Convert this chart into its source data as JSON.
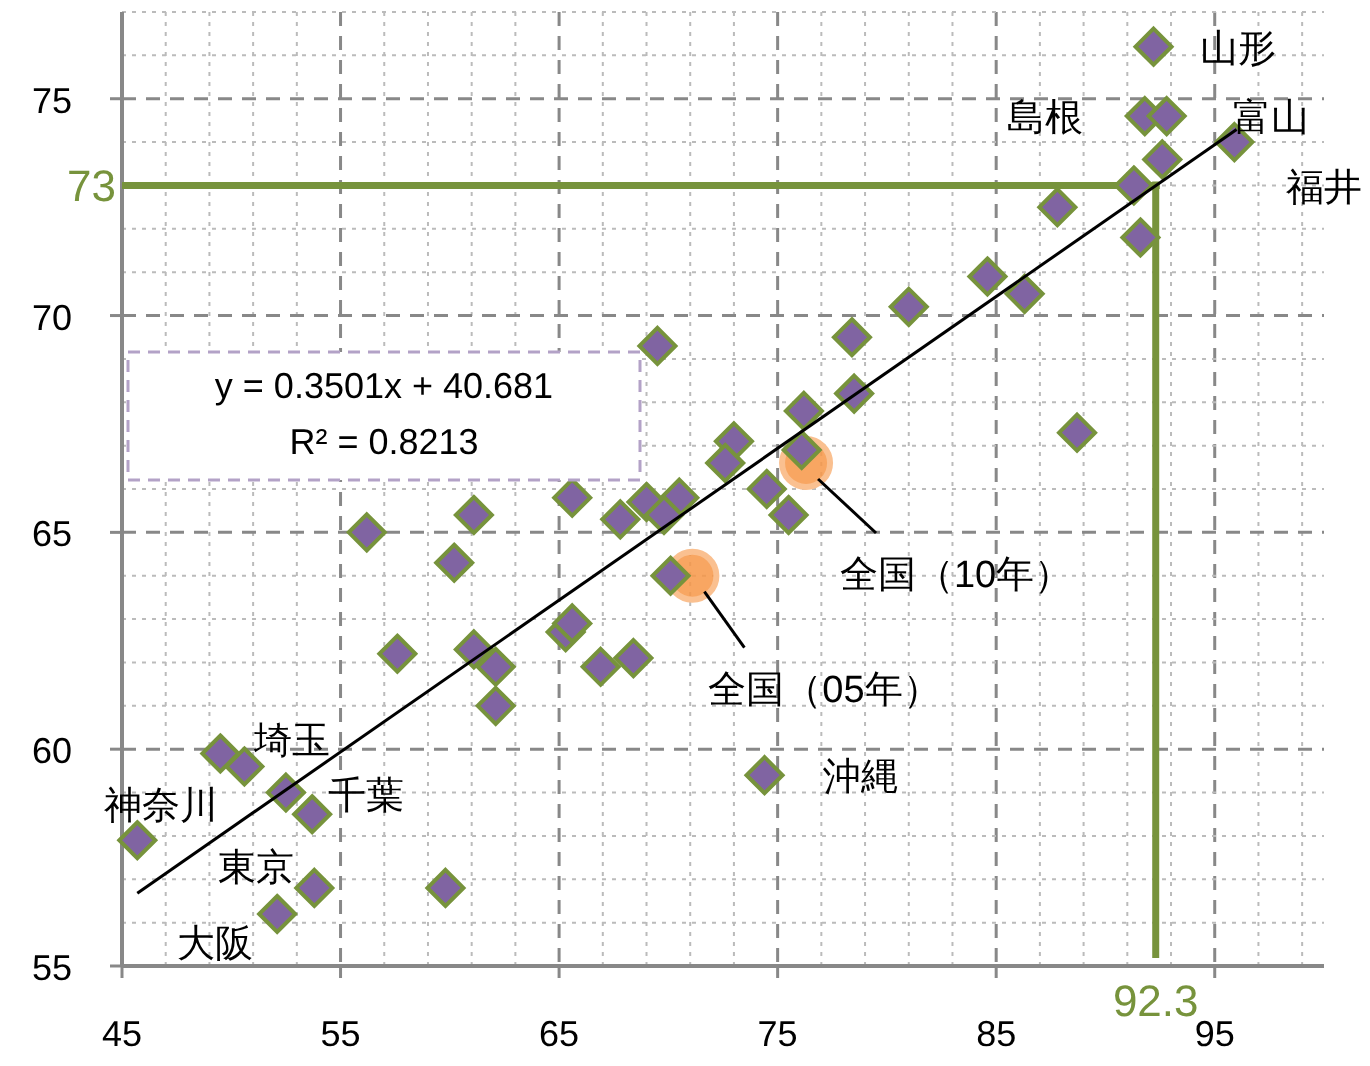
{
  "chart_data": {
    "type": "scatter",
    "xlim": [
      45,
      100
    ],
    "ylim": [
      55,
      77
    ],
    "xticks": [
      45,
      55,
      65,
      75,
      85,
      95
    ],
    "yticks": [
      55,
      60,
      65,
      70,
      75
    ],
    "grid": true,
    "series": [
      {
        "type": "scatter",
        "marker": "diamond",
        "color": "#8064a2",
        "x": [
          69.5,
          56.2,
          61.1,
          65.6,
          67.8,
          69.0,
          70.5,
          92.2,
          91.8,
          92.8,
          95.9,
          92.6,
          91.3,
          91.6,
          87.8,
          84.6,
          86.3,
          81.0,
          78.4,
          78.5,
          76.2,
          88.7,
          73.0,
          72.6,
          76.1,
          74.5,
          75.5,
          69.8,
          70.1,
          60.2,
          65.3,
          65.6,
          57.6,
          61.1,
          62.1,
          66.9,
          68.4,
          62.1,
          49.5,
          50.6,
          52.5,
          53.7,
          45.7,
          53.8,
          59.8,
          52.1,
          74.4
        ],
        "values": [
          69.3,
          65.0,
          65.4,
          65.8,
          65.3,
          65.7,
          65.8,
          76.2,
          74.6,
          74.6,
          74.0,
          73.6,
          73.0,
          71.8,
          72.5,
          70.9,
          70.5,
          70.2,
          69.5,
          68.2,
          67.8,
          67.3,
          67.1,
          66.6,
          66.9,
          66.0,
          65.4,
          65.4,
          64.0,
          64.3,
          62.7,
          62.9,
          62.2,
          62.3,
          61.9,
          61.9,
          62.1,
          61.0,
          59.9,
          59.6,
          59.0,
          58.5,
          57.9,
          56.8,
          56.8,
          56.2,
          59.4
        ]
      },
      {
        "type": "scatter",
        "marker": "circle",
        "color": "#f79646",
        "x": [
          71.1,
          76.3
        ],
        "values": [
          64.0,
          66.6
        ]
      },
      {
        "type": "line",
        "color": "#000000",
        "x": [
          45.7,
          96.0
        ],
        "values": [
          56.68,
          74.29
        ]
      }
    ],
    "ref_lines": [
      {
        "axis": "y",
        "value": 73,
        "label": "73",
        "color": "#77933c"
      },
      {
        "axis": "x",
        "value": 92.3,
        "label": "92.3",
        "color": "#77933c"
      }
    ],
    "annotations": [
      "y = 0.3501x + 40.681\nR² = 0.8213",
      {
        "text": "山形",
        "x": 92.2,
        "y": 76.2
      },
      {
        "text": "島根",
        "x": 91.8,
        "y": 74.6
      },
      {
        "text": "富山",
        "x": 92.8,
        "y": 74.6
      },
      {
        "text": "福井",
        "x": 95.9,
        "y": 74.0
      },
      {
        "text": "全国（10年）",
        "x": 76.3,
        "y": 66.6
      },
      {
        "text": "全国（05年）",
        "x": 71.1,
        "y": 64.0
      },
      {
        "text": "沖縄",
        "x": 74.4,
        "y": 59.4
      },
      {
        "text": "埼玉",
        "x": 50.6,
        "y": 59.6
      },
      {
        "text": "千葉",
        "x": 53.7,
        "y": 58.5
      },
      {
        "text": "神奈川",
        "x": 45.7,
        "y": 57.9
      },
      {
        "text": "東京",
        "x": 53.8,
        "y": 56.8
      },
      {
        "text": "大阪",
        "x": 52.1,
        "y": 56.2
      }
    ]
  }
}
